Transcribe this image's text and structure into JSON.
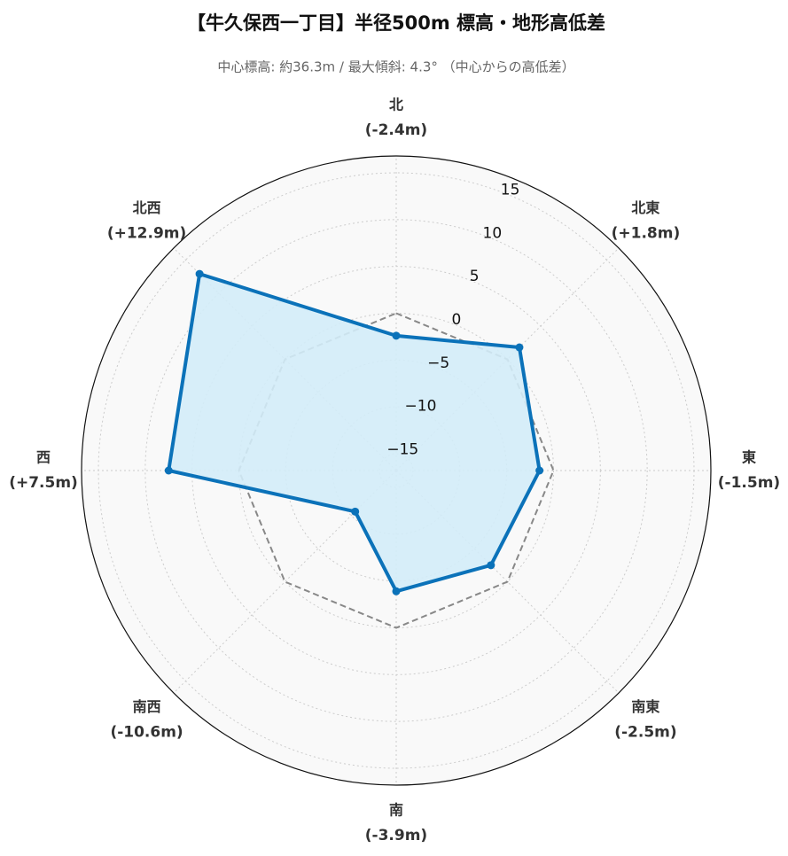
{
  "chart_data": {
    "type": "radar",
    "title": "【牛久保西一丁目】半径500m 標高・地形高低差",
    "subtitle": "中心標高: 約36.3m / 最大傾斜: 4.3° （中心からの高低差）",
    "categories": [
      "北",
      "北東",
      "東",
      "南東",
      "南",
      "南西",
      "西",
      "北西"
    ],
    "values": [
      -2.4,
      1.8,
      -1.5,
      -2.5,
      -3.9,
      -10.6,
      7.5,
      12.9
    ],
    "value_labels": [
      "(-2.4m)",
      "(+1.8m)",
      "(-1.5m)",
      "(-2.5m)",
      "(-3.9m)",
      "(-10.6m)",
      "(+7.5m)",
      "(+12.9m)"
    ],
    "color": "#0b72b9",
    "fill": "#d3ecf8",
    "reference_value": 0,
    "ylim": [
      -16.8,
      16.8
    ],
    "yticks": [
      {
        "value": -15,
        "label": "−15"
      },
      {
        "value": -10,
        "label": "−10"
      },
      {
        "value": -5,
        "label": "−5"
      },
      0,
      5,
      10,
      15
    ],
    "grid": true
  }
}
